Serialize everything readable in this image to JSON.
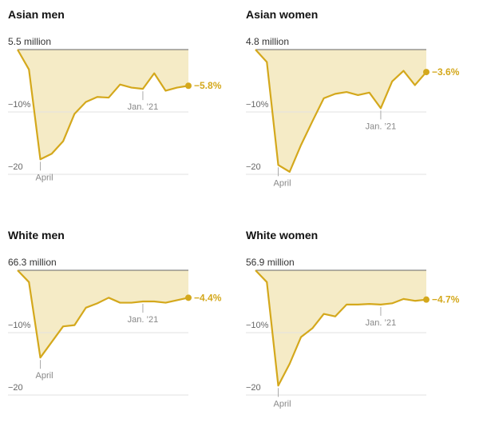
{
  "chart_data": [
    {
      "type": "area-line",
      "title": "Asian men",
      "categories": [
        null,
        null,
        "April",
        null,
        null,
        null,
        null,
        null,
        null,
        null,
        null,
        "Jan. ’21",
        null,
        null,
        null,
        null
      ],
      "values": [
        0,
        -3.2,
        -17.6,
        -16.7,
        -14.7,
        -10.3,
        -8.4,
        -7.6,
        -7.7,
        -5.6,
        -6.1,
        -6.3,
        -3.8,
        -6.6,
        -6.1,
        -5.8
      ],
      "value_labels": [
        null,
        null,
        null,
        null,
        null,
        null,
        null,
        null,
        null,
        null,
        null,
        null,
        null,
        null,
        null,
        "−5.8%"
      ],
      "color": "#d4a81c",
      "fill": "#f5ebc6",
      "ylim": [
        -20,
        0
      ],
      "yticks": [
        {
          "value": 0,
          "label": "5.5 million"
        },
        {
          "value": -10,
          "label": "−10%"
        },
        {
          "value": -20,
          "label": "−20"
        }
      ]
    },
    {
      "type": "area-line",
      "title": "Asian women",
      "categories": [
        null,
        null,
        "April",
        null,
        null,
        null,
        null,
        null,
        null,
        null,
        null,
        "Jan. ’21",
        null,
        null,
        null,
        null
      ],
      "values": [
        0,
        -2,
        -18.5,
        -19.6,
        -15.3,
        -11.5,
        -7.8,
        -7.1,
        -6.8,
        -7.3,
        -6.9,
        -9.4,
        -5.1,
        -3.4,
        -5.7,
        -3.6
      ],
      "value_labels": [
        null,
        null,
        null,
        null,
        null,
        null,
        null,
        null,
        null,
        null,
        null,
        null,
        null,
        null,
        null,
        "−3.6%"
      ],
      "color": "#d4a81c",
      "fill": "#f5ebc6",
      "ylim": [
        -20,
        0
      ],
      "yticks": [
        {
          "value": 0,
          "label": "4.8 million"
        },
        {
          "value": -10,
          "label": "−10%"
        },
        {
          "value": -20,
          "label": "−20"
        }
      ]
    },
    {
      "type": "area-line",
      "title": "White men",
      "categories": [
        null,
        null,
        "April",
        null,
        null,
        null,
        null,
        null,
        null,
        null,
        null,
        "Jan. ’21",
        null,
        null,
        null,
        null
      ],
      "values": [
        0,
        -1.9,
        -14,
        -11.5,
        -9,
        -8.8,
        -6,
        -5.3,
        -4.4,
        -5.2,
        -5.2,
        -5,
        -5,
        -5.2,
        -4.8,
        -4.4
      ],
      "value_labels": [
        null,
        null,
        null,
        null,
        null,
        null,
        null,
        null,
        null,
        null,
        null,
        null,
        null,
        null,
        null,
        "−4.4%"
      ],
      "color": "#d4a81c",
      "fill": "#f5ebc6",
      "ylim": [
        -20,
        0
      ],
      "yticks": [
        {
          "value": 0,
          "label": "66.3 million"
        },
        {
          "value": -10,
          "label": "−10%"
        },
        {
          "value": -20,
          "label": "−20"
        }
      ]
    },
    {
      "type": "area-line",
      "title": "White women",
      "categories": [
        null,
        null,
        "April",
        null,
        null,
        null,
        null,
        null,
        null,
        null,
        null,
        "Jan. ’21",
        null,
        null,
        null,
        null
      ],
      "values": [
        0,
        -1.9,
        -18.5,
        -15,
        -10.7,
        -9.3,
        -7,
        -7.4,
        -5.5,
        -5.5,
        -5.4,
        -5.5,
        -5.3,
        -4.6,
        -4.9,
        -4.7
      ],
      "value_labels": [
        null,
        null,
        null,
        null,
        null,
        null,
        null,
        null,
        null,
        null,
        null,
        null,
        null,
        null,
        null,
        "−4.7%"
      ],
      "color": "#d4a81c",
      "fill": "#f5ebc6",
      "ylim": [
        -20,
        0
      ],
      "yticks": [
        {
          "value": 0,
          "label": "56.9 million"
        },
        {
          "value": -10,
          "label": "−10%"
        },
        {
          "value": -20,
          "label": "−20"
        }
      ]
    }
  ]
}
